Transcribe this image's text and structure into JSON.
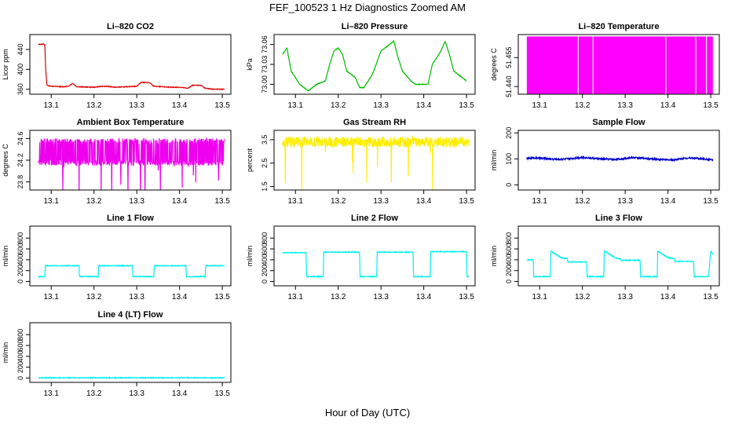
{
  "page": {
    "title": "FEF_100523  1 Hz Diagnostics Zoomed AM",
    "xlabel": "Hour of Day (UTC)"
  },
  "chart_data": [
    {
      "type": "line",
      "title": "Li–820 CO2",
      "ylabel": "Licor ppm",
      "color": "#dd0000",
      "xlim": [
        13.05,
        13.52
      ],
      "ylim": [
        350,
        470
      ],
      "yticks": [
        360,
        400,
        440
      ],
      "xticks": [
        "13.1",
        "13.2",
        "13.3",
        "13.4",
        "13.5"
      ],
      "x": [
        13.07,
        13.082,
        13.085,
        13.087,
        13.09,
        13.1,
        13.13,
        13.14,
        13.15,
        13.16,
        13.2,
        13.22,
        13.23,
        13.25,
        13.3,
        13.31,
        13.33,
        13.34,
        13.38,
        13.4,
        13.42,
        13.43,
        13.45,
        13.46,
        13.48,
        13.505
      ],
      "y": [
        450,
        451,
        450,
        400,
        368,
        366,
        365,
        366,
        372,
        365,
        364,
        366,
        366,
        364,
        366,
        374,
        373,
        366,
        364,
        364,
        362,
        368,
        368,
        362,
        360,
        360
      ]
    },
    {
      "type": "line",
      "title": "Li–820 Pressure",
      "ylabel": "kPa",
      "color": "#00bb00",
      "xlim": [
        13.05,
        13.52
      ],
      "ylim": [
        72.985,
        73.075
      ],
      "yticks": [
        73.0,
        73.03,
        73.06
      ],
      "ytick_labels": [
        "73.00",
        "73.03",
        "73.06"
      ],
      "xticks": [
        "13.1",
        "13.2",
        "13.3",
        "13.4",
        "13.5"
      ],
      "x": [
        13.07,
        13.08,
        13.09,
        13.1,
        13.11,
        13.13,
        13.15,
        13.17,
        13.18,
        13.19,
        13.2,
        13.21,
        13.22,
        13.24,
        13.25,
        13.26,
        13.28,
        13.3,
        13.32,
        13.33,
        13.34,
        13.35,
        13.37,
        13.38,
        13.41,
        13.42,
        13.44,
        13.45,
        13.46,
        13.47,
        13.49,
        13.5
      ],
      "y": [
        73.045,
        73.055,
        73.02,
        73.01,
        73.0,
        72.99,
        73.0,
        73.005,
        73.03,
        73.05,
        73.055,
        73.045,
        73.02,
        73.01,
        72.995,
        72.995,
        73.015,
        73.05,
        73.06,
        73.065,
        73.04,
        73.02,
        73.005,
        73.0,
        73.0,
        73.03,
        73.05,
        73.065,
        73.045,
        73.02,
        73.01,
        73.005
      ]
    },
    {
      "type": "area",
      "title": "Li–820 Temperature",
      "ylabel": "degrees C",
      "color": "#ff00ff",
      "xlim": [
        13.05,
        13.52
      ],
      "ylim": [
        51.436,
        51.467
      ],
      "yticks": [
        51.44,
        51.455
      ],
      "ytick_labels": [
        "51.440",
        "51.455"
      ],
      "xticks": [
        "13.1",
        "13.2",
        "13.3",
        "13.4",
        "13.5"
      ],
      "x": [
        13.07,
        13.505
      ],
      "y": [
        51.466,
        51.466
      ]
    },
    {
      "type": "line",
      "title": "Ambient Box Temperature",
      "ylabel": "degrees C",
      "color": "#ee00ee",
      "xlim": [
        13.05,
        13.52
      ],
      "ylim": [
        23.65,
        24.75
      ],
      "yticks": [
        23.8,
        24.2,
        24.6
      ],
      "xticks": [
        "13.1",
        "13.2",
        "13.3",
        "13.4",
        "13.5"
      ],
      "x": [
        13.07,
        13.505
      ],
      "y": [
        24.35,
        24.35
      ]
    },
    {
      "type": "line",
      "title": "Gas Stream RH",
      "ylabel": "percent",
      "color": "#ffee00",
      "xlim": [
        13.05,
        13.52
      ],
      "ylim": [
        1.35,
        3.9
      ],
      "yticks": [
        1.5,
        2.5,
        3.5
      ],
      "xticks": [
        "13.1",
        "13.2",
        "13.3",
        "13.4",
        "13.5"
      ],
      "x": [
        13.07,
        13.505
      ],
      "y": [
        3.4,
        3.4
      ]
    },
    {
      "type": "line",
      "title": "Sample Flow",
      "ylabel": "ml/min",
      "color": "#0000cc",
      "xlim": [
        13.05,
        13.52
      ],
      "ylim": [
        -20,
        210
      ],
      "yticks": [
        0,
        100,
        200
      ],
      "xticks": [
        "13.1",
        "13.2",
        "13.3",
        "13.4",
        "13.5"
      ],
      "x": [
        13.07,
        13.09,
        13.12,
        13.15,
        13.2,
        13.24,
        13.28,
        13.32,
        13.36,
        13.41,
        13.45,
        13.48,
        13.505
      ],
      "y": [
        101,
        104,
        100,
        98,
        106,
        100,
        98,
        105,
        100,
        96,
        104,
        100,
        96
      ]
    },
    {
      "type": "line",
      "title": "Line 1 Flow",
      "ylabel": "ml/min",
      "color": "#00eeee",
      "xlim": [
        13.05,
        13.52
      ],
      "ylim": [
        -80,
        1020
      ],
      "yticks": [
        0,
        200,
        400,
        600,
        800
      ],
      "xticks": [
        "13.1",
        "13.2",
        "13.3",
        "13.4",
        "13.5"
      ],
      "x": [
        13.07,
        13.085,
        13.086,
        13.165,
        13.166,
        13.21,
        13.211,
        13.29,
        13.291,
        13.34,
        13.341,
        13.415,
        13.416,
        13.46,
        13.461,
        13.505
      ],
      "y": [
        90,
        90,
        290,
        290,
        90,
        90,
        290,
        290,
        90,
        90,
        290,
        290,
        90,
        90,
        290,
        290
      ]
    },
    {
      "type": "line",
      "title": "Line 2 Flow",
      "ylabel": "ml/min",
      "color": "#00eeee",
      "xlim": [
        13.05,
        13.52
      ],
      "ylim": [
        -80,
        1020
      ],
      "yticks": [
        0,
        200,
        400,
        600,
        800
      ],
      "xticks": [
        "13.1",
        "13.2",
        "13.3",
        "13.4",
        "13.5"
      ],
      "x": [
        13.07,
        13.125,
        13.126,
        13.165,
        13.166,
        13.25,
        13.251,
        13.29,
        13.291,
        13.375,
        13.376,
        13.415,
        13.416,
        13.5,
        13.501,
        13.505
      ],
      "y": [
        530,
        530,
        90,
        90,
        540,
        540,
        90,
        90,
        540,
        540,
        90,
        90,
        550,
        550,
        90,
        90
      ]
    },
    {
      "type": "line",
      "title": "Line 3 Flow",
      "ylabel": "ml/min",
      "color": "#00eeee",
      "xlim": [
        13.05,
        13.52
      ],
      "ylim": [
        -80,
        1020
      ],
      "yticks": [
        0,
        200,
        400,
        600,
        800
      ],
      "xticks": [
        "13.1",
        "13.2",
        "13.3",
        "13.4",
        "13.5"
      ],
      "x": [
        13.07,
        13.085,
        13.086,
        13.125,
        13.126,
        13.15,
        13.165,
        13.166,
        13.21,
        13.211,
        13.25,
        13.251,
        13.275,
        13.29,
        13.291,
        13.335,
        13.336,
        13.375,
        13.376,
        13.4,
        13.415,
        13.416,
        13.46,
        13.461,
        13.495,
        13.5,
        13.505
      ],
      "y": [
        400,
        400,
        90,
        90,
        560,
        440,
        420,
        360,
        360,
        90,
        90,
        570,
        440,
        410,
        390,
        390,
        90,
        90,
        560,
        440,
        420,
        370,
        370,
        90,
        90,
        560,
        500
      ]
    },
    {
      "type": "line",
      "title": "Line 4 (LT) Flow",
      "ylabel": "ml/min",
      "color": "#00eeee",
      "xlim": [
        13.05,
        13.52
      ],
      "ylim": [
        -80,
        1020
      ],
      "yticks": [
        0,
        200,
        400,
        600,
        800
      ],
      "xticks": [
        "13.1",
        "13.2",
        "13.3",
        "13.4",
        "13.5"
      ],
      "x": [
        13.07,
        13.505
      ],
      "y": [
        5,
        5
      ]
    }
  ]
}
